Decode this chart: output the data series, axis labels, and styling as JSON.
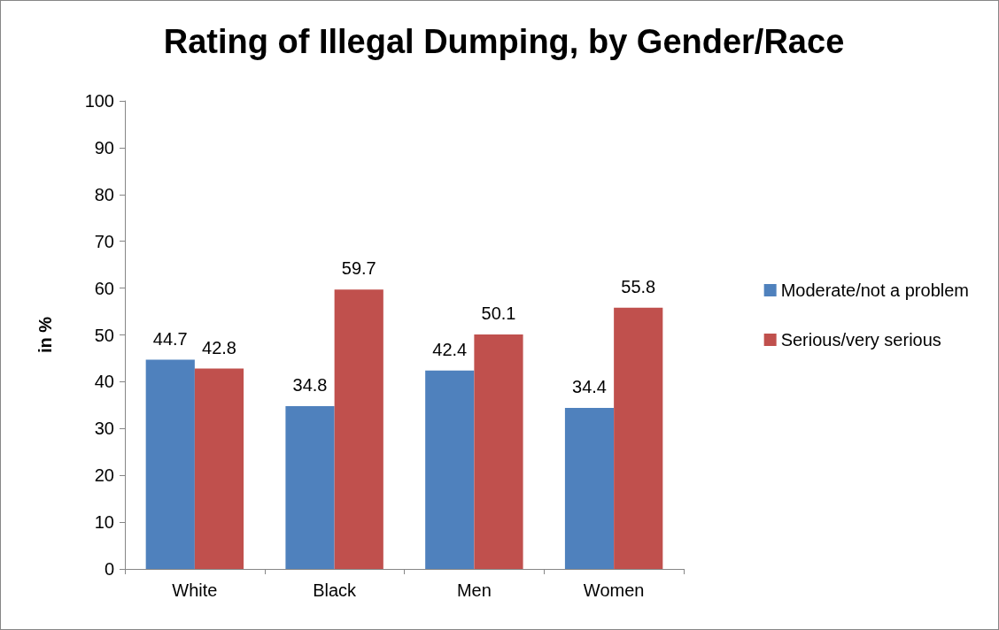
{
  "chart_data": {
    "type": "bar",
    "title": "Rating of Illegal Dumping, by Gender/Race",
    "ylabel": "in %",
    "categories": [
      "White",
      "Black",
      "Men",
      "Women"
    ],
    "series": [
      {
        "name": "Moderate/not a problem",
        "color": "#4f81bd",
        "values": [
          44.7,
          34.8,
          42.4,
          34.4
        ]
      },
      {
        "name": "Serious/very serious",
        "color": "#c0504d",
        "values": [
          42.8,
          59.7,
          50.1,
          55.8
        ]
      }
    ],
    "ylim": [
      0,
      100
    ],
    "yticks": [
      0,
      10,
      20,
      30,
      40,
      50,
      60,
      70,
      80,
      90,
      100
    ],
    "grid": false,
    "legend": "right",
    "data_labels": true
  }
}
